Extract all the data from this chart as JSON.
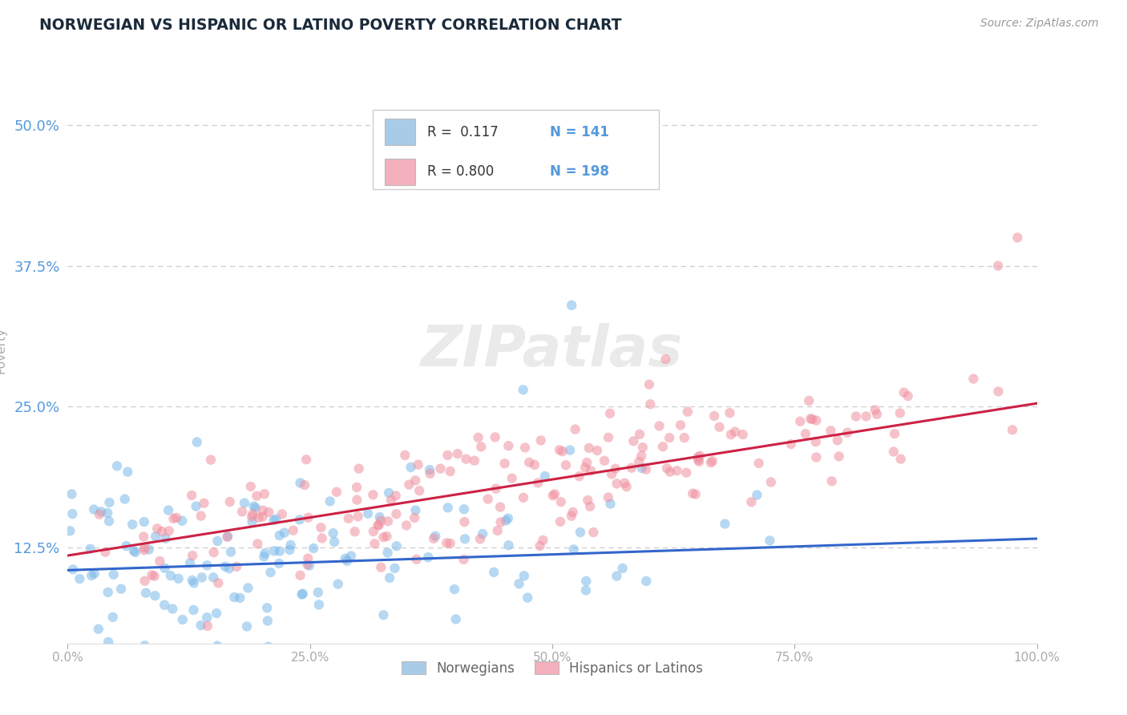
{
  "title": "NORWEGIAN VS HISPANIC OR LATINO POVERTY CORRELATION CHART",
  "source": "Source: ZipAtlas.com",
  "ylabel": "Poverty",
  "legend_labels": [
    "Norwegians",
    "Hispanics or Latinos"
  ],
  "r_values": [
    0.117,
    0.8
  ],
  "n_values": [
    141,
    198
  ],
  "dot_color_norwegian": "#7ab8e8",
  "dot_color_hispanic": "#f090a0",
  "line_color_norwegian": "#3366cc",
  "line_color_hispanic": "#cc2244",
  "legend_patch_norwegian": "#a8cce8",
  "legend_patch_hispanic": "#f4b0bc",
  "background_color": "#ffffff",
  "grid_color": "#cccccc",
  "title_color": "#1a2a3a",
  "axis_label_color": "#5599dd",
  "ytick_labels": [
    "12.5%",
    "25.0%",
    "37.5%",
    "50.0%"
  ],
  "ytick_values": [
    0.125,
    0.25,
    0.375,
    0.5
  ],
  "xtick_positions": [
    0.0,
    0.25,
    0.5,
    0.75,
    1.0
  ],
  "xtick_labels": [
    "0.0%",
    "25.0%",
    "50.0%",
    "75.0%",
    "100.0%"
  ],
  "xmin": 0.0,
  "xmax": 1.0,
  "ymin": 0.04,
  "ymax": 0.56,
  "norw_slope": 0.028,
  "norw_intercept": 0.105,
  "hisp_slope": 0.135,
  "hisp_intercept": 0.118,
  "seed": 17
}
